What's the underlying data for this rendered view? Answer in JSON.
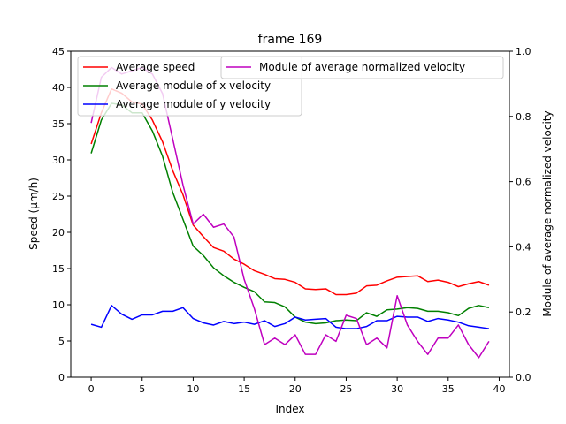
{
  "chart_data": {
    "type": "line",
    "title": "frame 169",
    "xlabel": "Index",
    "ylabel_left": "Speed (μm/h)",
    "ylabel_right": "Module of average normalized velocity",
    "xlim": [
      -2,
      41
    ],
    "ylim_left": [
      0,
      45
    ],
    "ylim_right": [
      0,
      1.0
    ],
    "x_ticks": [
      0,
      5,
      10,
      15,
      20,
      25,
      30,
      35,
      40
    ],
    "y_ticks_left": [
      0,
      5,
      10,
      15,
      20,
      25,
      30,
      35,
      40,
      45
    ],
    "y_ticks_right": [
      "0.0",
      "0.2",
      "0.4",
      "0.6",
      "0.8",
      "1.0"
    ],
    "grid": false,
    "legend_left_placement": "top-left",
    "legend_right_placement": "top-right",
    "x": [
      0,
      1,
      2,
      3,
      4,
      5,
      6,
      7,
      8,
      9,
      10,
      11,
      12,
      13,
      14,
      15,
      16,
      17,
      18,
      19,
      20,
      21,
      22,
      23,
      24,
      25,
      26,
      27,
      28,
      29,
      30,
      31,
      32,
      33,
      34,
      35,
      36,
      37,
      38,
      39
    ],
    "series": [
      {
        "name": "Average speed",
        "axis": "left",
        "color": "#ff0000",
        "values": [
          32.2,
          36.5,
          39.8,
          39.2,
          38.0,
          37.7,
          35.5,
          32.5,
          28.5,
          25.2,
          21.0,
          19.4,
          17.9,
          17.4,
          16.3,
          15.6,
          14.7,
          14.2,
          13.6,
          13.5,
          13.1,
          12.2,
          12.1,
          12.2,
          11.4,
          11.4,
          11.6,
          12.6,
          12.7,
          13.3,
          13.8,
          13.9,
          14.0,
          13.2,
          13.4,
          13.1,
          12.5,
          12.9,
          13.2,
          12.7
        ]
      },
      {
        "name": "Average module of x velocity",
        "axis": "left",
        "color": "#008000",
        "values": [
          30.9,
          35.5,
          37.8,
          37.6,
          36.5,
          36.5,
          34.0,
          30.5,
          25.5,
          21.8,
          18.1,
          16.8,
          15.1,
          14.0,
          13.1,
          12.4,
          11.8,
          10.4,
          10.3,
          9.7,
          8.3,
          7.6,
          7.4,
          7.5,
          7.8,
          7.9,
          7.8,
          8.9,
          8.4,
          9.3,
          9.4,
          9.6,
          9.5,
          9.1,
          9.1,
          8.9,
          8.5,
          9.5,
          9.9,
          9.6
        ]
      },
      {
        "name": "Average module of y velocity",
        "axis": "left",
        "color": "#0000ff",
        "values": [
          7.3,
          6.9,
          9.9,
          8.7,
          8.0,
          8.6,
          8.6,
          9.1,
          9.1,
          9.6,
          8.1,
          7.5,
          7.2,
          7.7,
          7.4,
          7.6,
          7.3,
          7.8,
          7.0,
          7.4,
          8.3,
          7.9,
          8.0,
          8.1,
          6.9,
          6.7,
          6.7,
          7.0,
          7.8,
          7.8,
          8.4,
          8.3,
          8.3,
          7.7,
          8.1,
          7.9,
          7.6,
          7.1,
          6.9,
          6.7
        ]
      },
      {
        "name": "Module of average normalized velocity",
        "axis": "right",
        "color": "#bf00bf",
        "values": [
          0.78,
          0.92,
          0.95,
          0.93,
          0.94,
          0.95,
          0.93,
          0.87,
          0.73,
          0.59,
          0.47,
          0.5,
          0.46,
          0.47,
          0.43,
          0.3,
          0.21,
          0.1,
          0.12,
          0.1,
          0.13,
          0.07,
          0.07,
          0.13,
          0.11,
          0.19,
          0.18,
          0.1,
          0.12,
          0.09,
          0.25,
          0.16,
          0.11,
          0.07,
          0.12,
          0.12,
          0.16,
          0.1,
          0.06,
          0.11
        ]
      }
    ]
  }
}
